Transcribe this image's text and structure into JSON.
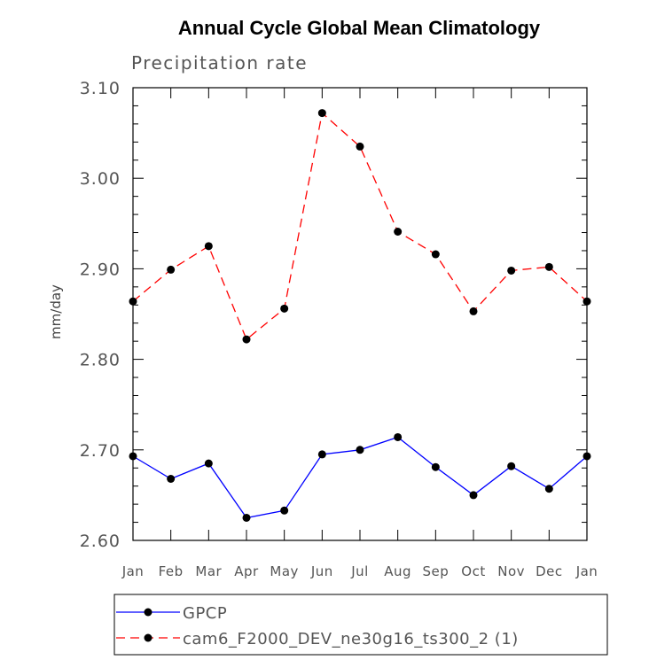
{
  "chart_data": {
    "type": "line",
    "title": "Annual Cycle Global Mean Climatology",
    "subtitle": "Precipitation rate",
    "ylabel": "mm/day",
    "xlabel": "",
    "categories": [
      "Jan",
      "Feb",
      "Mar",
      "Apr",
      "May",
      "Jun",
      "Jul",
      "Aug",
      "Sep",
      "Oct",
      "Nov",
      "Dec",
      "Jan"
    ],
    "ylim": [
      2.6,
      3.1
    ],
    "yticks": [
      "2.60",
      "2.70",
      "2.80",
      "2.90",
      "3.00",
      "3.10"
    ],
    "grid": false,
    "legend_position": "bottom",
    "series": [
      {
        "name": "GPCP",
        "color": "#0000ff",
        "linestyle": "solid",
        "marker": "filled-circle",
        "values": [
          2.693,
          2.668,
          2.685,
          2.625,
          2.633,
          2.695,
          2.7,
          2.714,
          2.681,
          2.65,
          2.682,
          2.657,
          2.693
        ]
      },
      {
        "name": "cam6_F2000_DEV_ne30g16_ts300_2 (1)",
        "color": "#ff0000",
        "linestyle": "dashed",
        "marker": "filled-circle",
        "values": [
          2.864,
          2.899,
          2.925,
          2.822,
          2.856,
          3.072,
          3.035,
          2.941,
          2.916,
          2.853,
          2.898,
          2.902,
          2.864
        ]
      }
    ]
  }
}
